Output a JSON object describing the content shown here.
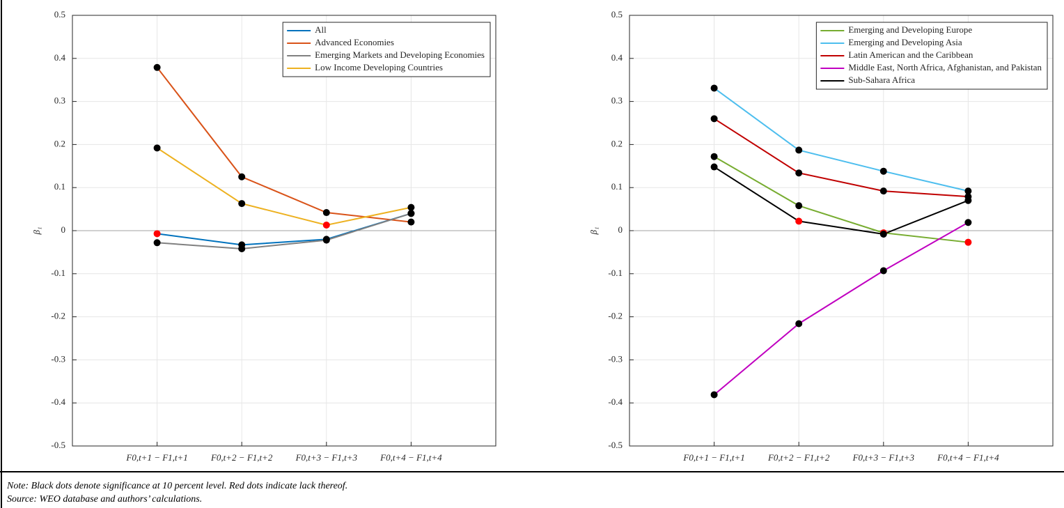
{
  "chart_data": [
    {
      "type": "line",
      "ylabel": "β₁",
      "categories": [
        "F0,t+1 − F1,t+1",
        "F0,t+2 − F1,t+2",
        "F0,t+3 − F1,t+3",
        "F0,t+4 − F1,t+4"
      ],
      "ylim": [
        -0.5,
        0.5
      ],
      "yticks": [
        -0.5,
        -0.4,
        -0.3,
        -0.2,
        -0.1,
        0,
        0.1,
        0.2,
        0.3,
        0.4,
        0.5
      ],
      "grid": true,
      "legend": "upper right",
      "series": [
        {
          "name": "All",
          "color": "#0072bd",
          "values": [
            -0.007,
            -0.033,
            -0.02,
            0.04
          ],
          "point_colors": [
            "#ff0000",
            "#000000",
            "#000000",
            "#000000"
          ]
        },
        {
          "name": "Advanced Economies",
          "color": "#d95319",
          "values": [
            0.379,
            0.125,
            0.042,
            0.02
          ],
          "point_colors": [
            "#000000",
            "#000000",
            "#000000",
            "#000000"
          ]
        },
        {
          "name": "Emerging Markets and Developing Economies",
          "color": "#808080",
          "values": [
            -0.028,
            -0.042,
            -0.022,
            0.04
          ],
          "point_colors": [
            "#000000",
            "#000000",
            "#000000",
            "#000000"
          ]
        },
        {
          "name": "Low Income Developing Countries",
          "color": "#edb120",
          "values": [
            0.192,
            0.063,
            0.013,
            0.054
          ],
          "point_colors": [
            "#000000",
            "#000000",
            "#ff0000",
            "#000000"
          ]
        }
      ]
    },
    {
      "type": "line",
      "ylabel": "β₁",
      "categories": [
        "F0,t+1 − F1,t+1",
        "F0,t+2 − F1,t+2",
        "F0,t+3 − F1,t+3",
        "F0,t+4 − F1,t+4"
      ],
      "ylim": [
        -0.5,
        0.5
      ],
      "yticks": [
        -0.5,
        -0.4,
        -0.3,
        -0.2,
        -0.1,
        0,
        0.1,
        0.2,
        0.3,
        0.4,
        0.5
      ],
      "grid": true,
      "legend": "upper right",
      "series": [
        {
          "name": "Emerging and Developing Europe",
          "color": "#77ac30",
          "values": [
            0.172,
            0.058,
            -0.005,
            -0.027
          ],
          "point_colors": [
            "#000000",
            "#000000",
            "#ff0000",
            "#ff0000"
          ]
        },
        {
          "name": "Emerging and Developing Asia",
          "color": "#4dbeee",
          "values": [
            0.331,
            0.187,
            0.138,
            0.092
          ],
          "point_colors": [
            "#000000",
            "#000000",
            "#000000",
            "#000000"
          ]
        },
        {
          "name": "Latin American and the Caribbean",
          "color": "#c00000",
          "values": [
            0.26,
            0.134,
            0.092,
            0.079
          ],
          "point_colors": [
            "#000000",
            "#000000",
            "#000000",
            "#000000"
          ]
        },
        {
          "name": "Middle East, North Africa, Afghanistan, and Pakistan",
          "color": "#c000c0",
          "values": [
            -0.381,
            -0.216,
            -0.093,
            0.019
          ],
          "point_colors": [
            "#000000",
            "#000000",
            "#000000",
            "#000000"
          ]
        },
        {
          "name": "Sub-Sahara Africa",
          "color": "#000000",
          "values": [
            0.148,
            0.022,
            -0.008,
            0.07
          ],
          "point_colors": [
            "#000000",
            "#ff0000",
            "#000000",
            "#000000"
          ]
        }
      ]
    }
  ],
  "note": "Note: Black dots denote significance at 10 percent level. Red dots indicate lack thereof.",
  "source": "Source: WEO database and authors’ calculations."
}
